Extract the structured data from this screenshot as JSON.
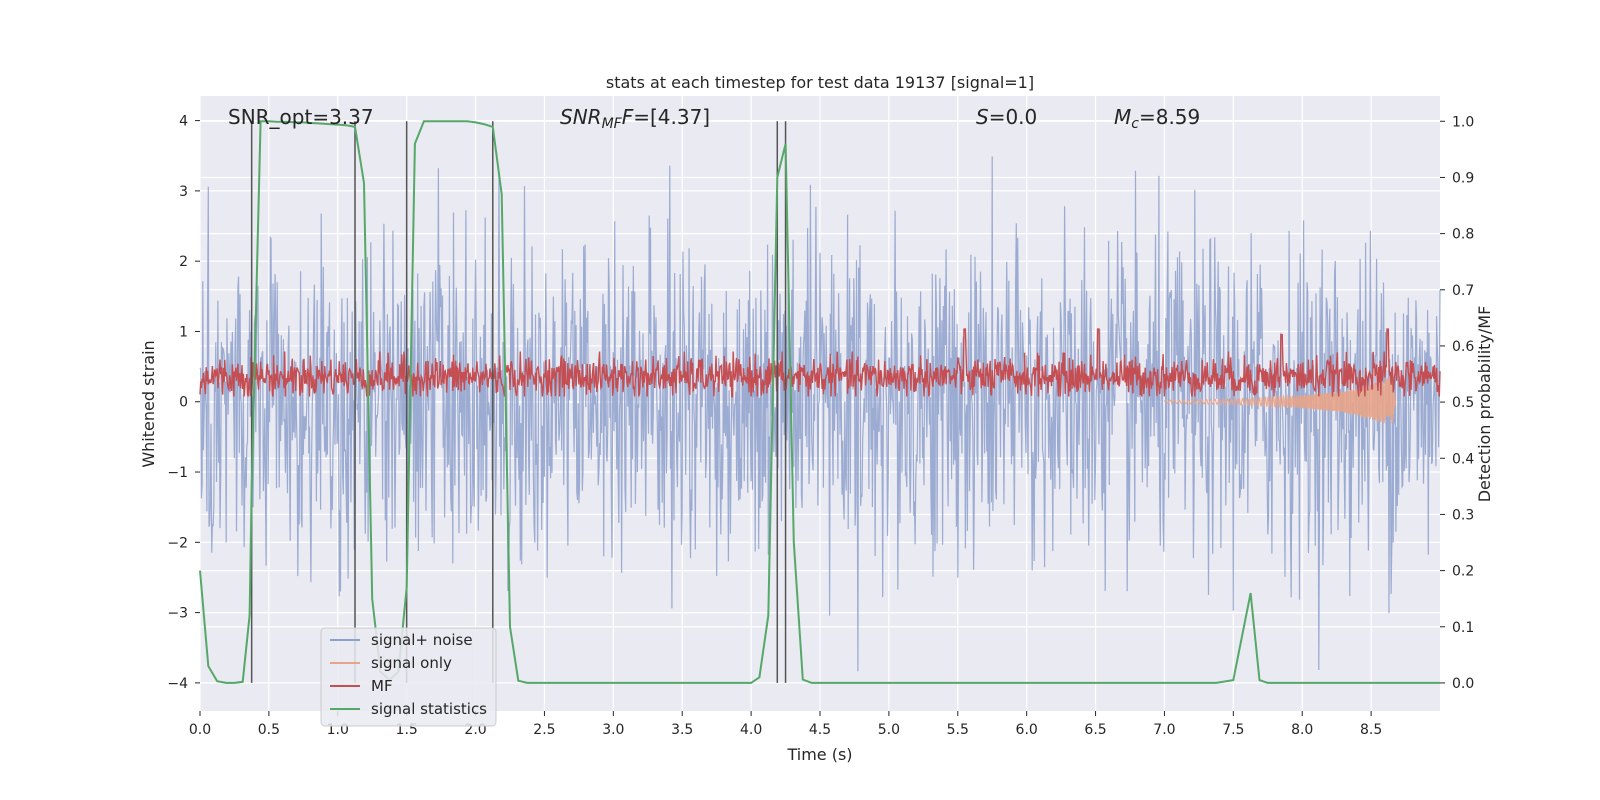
{
  "chart_data": {
    "type": "line",
    "title": "stats at each timestep for test data 19137 [signal=1]",
    "xlabel": "Time (s)",
    "ylabel_left": "Whitened strain",
    "ylabel_right": "Detection probability/MF",
    "xlim": [
      0.0,
      9.0
    ],
    "ylim_left": [
      -4.4,
      4.35
    ],
    "ylim_right": [
      -0.05,
      1.045
    ],
    "x_ticks": [
      0.0,
      0.5,
      1.0,
      1.5,
      2.0,
      2.5,
      3.0,
      3.5,
      4.0,
      4.5,
      5.0,
      5.5,
      6.0,
      6.5,
      7.0,
      7.5,
      8.0,
      8.5
    ],
    "x_tick_labels": [
      "0.0",
      "0.5",
      "1.0",
      "1.5",
      "2.0",
      "2.5",
      "3.0",
      "3.5",
      "4.0",
      "4.5",
      "5.0",
      "5.5",
      "6.0",
      "6.5",
      "7.0",
      "7.5",
      "8.0",
      "8.5"
    ],
    "y_left_ticks": [
      -4,
      -3,
      -2,
      -1,
      0,
      1,
      2,
      3,
      4
    ],
    "y_left_tick_labels": [
      "−4",
      "−3",
      "−2",
      "−1",
      "0",
      "1",
      "2",
      "3",
      "4"
    ],
    "y_right_ticks": [
      0.0,
      0.1,
      0.2,
      0.3,
      0.4,
      0.5,
      0.6,
      0.7,
      0.8,
      0.9,
      1.0
    ],
    "y_right_tick_labels": [
      "0.0",
      "0.1",
      "0.2",
      "0.3",
      "0.4",
      "0.5",
      "0.6",
      "0.7",
      "0.8",
      "0.9",
      "1.0"
    ],
    "grid": true,
    "legend_position": "lower-left",
    "annotations": {
      "snr_opt": "SNR_opt=3.37",
      "snr_mf_symbol": "SNR",
      "snr_mf_sub": "MF",
      "snr_mf_value": "=[4.37]",
      "s_symbol": "S",
      "s_value": "=0.0",
      "mc_symbol": "M",
      "mc_sub": "c",
      "mc_value": "=8.59"
    },
    "vertical_lines_x": [
      0.375,
      1.125,
      1.5,
      2.125,
      4.19,
      4.25
    ],
    "series": [
      {
        "name": "signal+ noise",
        "color": "#8da0cb",
        "description_axis": "left",
        "envelope": {
          "mean": 0.0,
          "std": 1.0,
          "max_abs": 4.0,
          "sample_rate_hz": 200
        }
      },
      {
        "name": "signal only",
        "color": "#e8a48a",
        "axis": "left",
        "x": [
          7.0,
          7.5,
          8.0,
          8.3,
          8.5,
          8.65,
          8.68
        ],
        "amplitude": [
          0.02,
          0.04,
          0.09,
          0.15,
          0.25,
          0.35,
          0.0
        ]
      },
      {
        "name": "MF",
        "color": "#c44e52",
        "axis": "right",
        "envelope": {
          "mean": 0.545,
          "low": 0.51,
          "high": 0.59,
          "peaks": [
            [
              5.55,
              0.63
            ],
            [
              6.52,
              0.63
            ],
            [
              8.62,
              0.63
            ],
            [
              7.85,
              0.62
            ]
          ]
        }
      },
      {
        "name": "signal statistics",
        "color": "#55a868",
        "axis": "right",
        "x": [
          0.0,
          0.06,
          0.125,
          0.19,
          0.25,
          0.31,
          0.36,
          0.375,
          0.44,
          0.5,
          0.56,
          0.625,
          0.69,
          0.75,
          0.81,
          0.875,
          0.94,
          1.0,
          1.06,
          1.125,
          1.19,
          1.25,
          1.31,
          1.375,
          1.44,
          1.5,
          1.56,
          1.625,
          1.69,
          1.75,
          1.81,
          1.875,
          1.94,
          2.0,
          2.06,
          2.125,
          2.19,
          2.25,
          2.31,
          2.375,
          2.44,
          2.5,
          3.0,
          3.5,
          4.0,
          4.06,
          4.125,
          4.19,
          4.25,
          4.31,
          4.375,
          4.44,
          4.5,
          5.0,
          6.0,
          7.0,
          7.375,
          7.5,
          7.625,
          7.69,
          7.75,
          8.0,
          8.5,
          9.0
        ],
        "y": [
          0.2,
          0.03,
          0.003,
          0.0,
          0.0,
          0.002,
          0.12,
          0.35,
          1.0,
          1.0,
          0.999,
          0.999,
          0.998,
          0.998,
          0.997,
          0.996,
          0.995,
          0.994,
          0.993,
          0.99,
          0.89,
          0.15,
          0.02,
          0.005,
          0.02,
          0.17,
          0.96,
          1.0,
          1.0,
          1.0,
          1.0,
          1.0,
          1.0,
          0.998,
          0.995,
          0.99,
          0.87,
          0.1,
          0.004,
          0.0,
          0.0,
          0.0,
          0.0,
          0.0,
          0.0,
          0.01,
          0.12,
          0.9,
          0.96,
          0.25,
          0.006,
          0.0,
          0.0,
          0.0,
          0.0,
          0.0,
          0.0,
          0.005,
          0.16,
          0.005,
          0.0,
          0.0,
          0.0,
          0.0
        ]
      }
    ]
  }
}
